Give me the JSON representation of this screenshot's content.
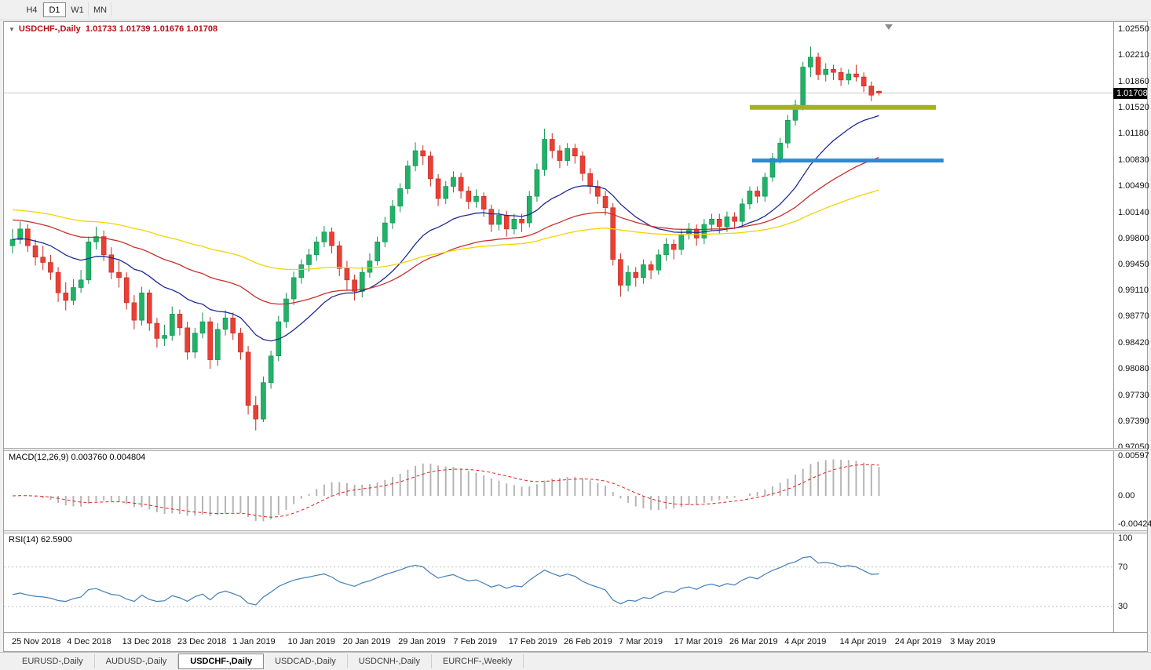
{
  "toolbar": {
    "timeframes": [
      {
        "label": "H4",
        "active": false
      },
      {
        "label": "D1",
        "active": true
      },
      {
        "label": "W1",
        "active": false
      },
      {
        "label": "MN",
        "active": false
      }
    ]
  },
  "icons": {
    "chart_menu_icon": "▼",
    "shift_marker_icon": "triangle-down"
  },
  "main_chart": {
    "symbol_title": "USDCHF-,Daily",
    "ohlc_text": "1.01733 1.01739 1.01676 1.01708",
    "price_box": "1.01708",
    "price_axis_ticks": [
      "1.02550",
      "1.02210",
      "1.01860",
      "1.01520",
      "1.01180",
      "1.00830",
      "1.00490",
      "1.00140",
      "0.99800",
      "0.99450",
      "0.99110",
      "0.98770",
      "0.98420",
      "0.98080",
      "0.97730",
      "0.97390",
      "0.97050"
    ]
  },
  "macd": {
    "label": "MACD(12,26,9)",
    "values": "0.003760 0.004804",
    "axis_ticks": [
      "0.00597",
      "0.00",
      "-0.00424"
    ]
  },
  "rsi": {
    "label": "RSI(14)",
    "value": "62.5900",
    "axis_ticks": [
      "100",
      "70",
      "30"
    ]
  },
  "time_axis": {
    "labels": [
      "25 Nov 2018",
      "4 Dec 2018",
      "13 Dec 2018",
      "23 Dec 2018",
      "1 Jan 2019",
      "10 Jan 2019",
      "20 Jan 2019",
      "29 Jan 2019",
      "7 Feb 2019",
      "17 Feb 2019",
      "26 Feb 2019",
      "7 Mar 2019",
      "17 Mar 2019",
      "26 Mar 2019",
      "4 Apr 2019",
      "14 Apr 2019",
      "24 Apr 2019",
      "3 May 2019"
    ]
  },
  "tabs": [
    {
      "label": "EURUSD-,Daily",
      "active": false
    },
    {
      "label": "AUDUSD-,Daily",
      "active": false
    },
    {
      "label": "USDCHF-,Daily",
      "active": true
    },
    {
      "label": "USDCAD-,Daily",
      "active": false
    },
    {
      "label": "USDCNH-,Daily",
      "active": false
    },
    {
      "label": "EURCHF-,Weekly",
      "active": false
    }
  ],
  "chart_data": {
    "type": "candlestick",
    "symbol_title": "USDCHF-,Daily",
    "ohlc_header": {
      "open": "1.01733",
      "high": "1.01739",
      "low": "1.01676",
      "close": "1.01708"
    },
    "price_axis_range": {
      "top": 1.0255,
      "bottom": 0.9705
    },
    "colors": {
      "up": "#21b268",
      "up_stroke": "#0e8f4e",
      "down": "#ea3f34",
      "down_stroke": "#c42a20"
    },
    "bid_line": {
      "price": 1.01708,
      "color": "#c6c6c6"
    },
    "moving_averages": [
      {
        "period": 20,
        "color": "#1f2a93",
        "seed": null
      },
      {
        "period": 45,
        "color": "#c9302c",
        "seed": 1.0005
      },
      {
        "period": 90,
        "color": "#f2d400",
        "seed": 1.0018
      }
    ],
    "horizontal_segments": [
      {
        "price": 1.0152,
        "from_index": 97,
        "to_index": 121.5,
        "color": "#a4b220",
        "thickness": 6
      },
      {
        "price": 1.0082,
        "from_index": 97.3,
        "to_index": 122.5,
        "color": "#2a8bd4",
        "thickness": 5
      }
    ],
    "indicators": {
      "macd": {
        "label": "MACD(12,26,9)",
        "values_text": "0.003760 0.004804",
        "fast": 12,
        "slow": 26,
        "signal": 9,
        "axis_ticks": [
          "0.00597",
          "0.00",
          "-0.00424"
        ],
        "histogram_color": "#b5b5b5",
        "signal_color": "#e02020"
      },
      "rsi": {
        "label": "RSI(14)",
        "value_text": "62.5900",
        "period": 14,
        "levels": [
          70,
          30
        ],
        "axis_ticks": [
          "100",
          "70",
          "30"
        ],
        "line_color": "#417eb8"
      }
    },
    "candles": [
      [
        0.997,
        0.9992,
        0.996,
        0.9978
      ],
      [
        0.9978,
        1.0002,
        0.9972,
        0.9992
      ],
      [
        0.9992,
        0.9998,
        0.9962,
        0.997
      ],
      [
        0.997,
        0.9978,
        0.9944,
        0.9955
      ],
      [
        0.9955,
        0.997,
        0.9938,
        0.9948
      ],
      [
        0.9948,
        0.9958,
        0.9925,
        0.9935
      ],
      [
        0.9935,
        0.9942,
        0.9896,
        0.9908
      ],
      [
        0.9908,
        0.9922,
        0.9885,
        0.9898
      ],
      [
        0.9898,
        0.9926,
        0.9892,
        0.9915
      ],
      [
        0.9915,
        0.9938,
        0.9908,
        0.9925
      ],
      [
        0.9925,
        0.9982,
        0.992,
        0.9975
      ],
      [
        0.9975,
        0.9995,
        0.9965,
        0.9982
      ],
      [
        0.9982,
        0.999,
        0.995,
        0.9958
      ],
      [
        0.9958,
        0.9968,
        0.9926,
        0.9935
      ],
      [
        0.9935,
        0.995,
        0.9915,
        0.9928
      ],
      [
        0.9928,
        0.9935,
        0.9886,
        0.9895
      ],
      [
        0.9895,
        0.9905,
        0.986,
        0.9872
      ],
      [
        0.9872,
        0.9916,
        0.9865,
        0.9908
      ],
      [
        0.9908,
        0.9912,
        0.9858,
        0.9868
      ],
      [
        0.9868,
        0.9875,
        0.9836,
        0.9848
      ],
      [
        0.9848,
        0.9866,
        0.9838,
        0.9852
      ],
      [
        0.9852,
        0.989,
        0.9845,
        0.988
      ],
      [
        0.988,
        0.9886,
        0.9852,
        0.9862
      ],
      [
        0.9862,
        0.987,
        0.982,
        0.983
      ],
      [
        0.983,
        0.9862,
        0.9822,
        0.9855
      ],
      [
        0.9855,
        0.9882,
        0.9848,
        0.987
      ],
      [
        0.987,
        0.9876,
        0.9808,
        0.982
      ],
      [
        0.982,
        0.9868,
        0.9812,
        0.986
      ],
      [
        0.986,
        0.9885,
        0.9852,
        0.9875
      ],
      [
        0.9875,
        0.9882,
        0.9846,
        0.9855
      ],
      [
        0.9855,
        0.9862,
        0.982,
        0.983
      ],
      [
        0.983,
        0.9838,
        0.9748,
        0.976
      ],
      [
        0.976,
        0.9772,
        0.9727,
        0.9742
      ],
      [
        0.9742,
        0.9798,
        0.9738,
        0.979
      ],
      [
        0.979,
        0.9832,
        0.9782,
        0.9825
      ],
      [
        0.9825,
        0.9878,
        0.9818,
        0.987
      ],
      [
        0.987,
        0.9908,
        0.9862,
        0.99
      ],
      [
        0.99,
        0.9936,
        0.9892,
        0.9928
      ],
      [
        0.9928,
        0.9952,
        0.992,
        0.9945
      ],
      [
        0.9945,
        0.9966,
        0.9936,
        0.9958
      ],
      [
        0.9958,
        0.9982,
        0.995,
        0.9975
      ],
      [
        0.9975,
        0.9996,
        0.9968,
        0.9988
      ],
      [
        0.9988,
        0.9994,
        0.996,
        0.997
      ],
      [
        0.997,
        0.9976,
        0.993,
        0.994
      ],
      [
        0.994,
        0.995,
        0.9912,
        0.9925
      ],
      [
        0.9925,
        0.9932,
        0.9898,
        0.991
      ],
      [
        0.991,
        0.9942,
        0.9902,
        0.9935
      ],
      [
        0.9935,
        0.996,
        0.9928,
        0.995
      ],
      [
        0.995,
        0.9982,
        0.9944,
        0.9975
      ],
      [
        0.9975,
        1.0008,
        0.9968,
        1.0
      ],
      [
        1.0,
        1.003,
        0.9992,
        1.0022
      ],
      [
        1.0022,
        1.0052,
        1.0014,
        1.0045
      ],
      [
        1.0045,
        1.0082,
        1.0038,
        1.0075
      ],
      [
        1.0075,
        1.0106,
        1.0068,
        1.0095
      ],
      [
        1.0095,
        1.0102,
        1.0076,
        1.0088
      ],
      [
        1.0088,
        1.0094,
        1.0048,
        1.0058
      ],
      [
        1.0058,
        1.0064,
        1.0022,
        1.0032
      ],
      [
        1.0032,
        1.0055,
        1.0025,
        1.0048
      ],
      [
        1.0048,
        1.0068,
        1.004,
        1.006
      ],
      [
        1.006,
        1.0066,
        1.0032,
        1.0042
      ],
      [
        1.0042,
        1.0048,
        1.0018,
        1.0028
      ],
      [
        1.0028,
        1.0044,
        1.002,
        1.0035
      ],
      [
        1.0035,
        1.004,
        1.0008,
        1.0018
      ],
      [
        1.0018,
        1.0024,
        0.9988,
        0.9998
      ],
      [
        0.9998,
        1.0018,
        0.999,
        1.001
      ],
      [
        1.001,
        1.0016,
        0.9982,
        0.9992
      ],
      [
        0.9992,
        1.0012,
        0.9985,
        1.0005
      ],
      [
        1.0005,
        1.0012,
        0.9988,
        1.0
      ],
      [
        1.0,
        1.0042,
        0.9994,
        1.0035
      ],
      [
        1.0035,
        1.0078,
        1.0028,
        1.007
      ],
      [
        1.007,
        1.0124,
        1.0062,
        1.011
      ],
      [
        1.011,
        1.0118,
        1.0085,
        1.0095
      ],
      [
        1.0095,
        1.0102,
        1.0072,
        1.0082
      ],
      [
        1.0082,
        1.0105,
        1.0075,
        1.0098
      ],
      [
        1.0098,
        1.0104,
        1.0078,
        1.0088
      ],
      [
        1.0088,
        1.0094,
        1.0055,
        1.0065
      ],
      [
        1.0065,
        1.0072,
        1.0038,
        1.0048
      ],
      [
        1.0048,
        1.0056,
        1.0025,
        1.0035
      ],
      [
        1.0035,
        1.0042,
        1.001,
        1.002
      ],
      [
        1.002,
        1.0026,
        0.9944,
        0.9952
      ],
      [
        0.9952,
        0.996,
        0.9903,
        0.9918
      ],
      [
        0.9918,
        0.9944,
        0.991,
        0.9935
      ],
      [
        0.9935,
        0.9942,
        0.9916,
        0.9928
      ],
      [
        0.9928,
        0.9952,
        0.992,
        0.9945
      ],
      [
        0.9945,
        0.995,
        0.9926,
        0.9938
      ],
      [
        0.9938,
        0.9965,
        0.9932,
        0.9958
      ],
      [
        0.9958,
        0.998,
        0.995,
        0.9972
      ],
      [
        0.9972,
        0.9978,
        0.9952,
        0.9965
      ],
      [
        0.9965,
        0.9992,
        0.9958,
        0.9985
      ],
      [
        0.9985,
        1.0,
        0.9978,
        0.9992
      ],
      [
        0.9992,
        0.9998,
        0.997,
        0.998
      ],
      [
        0.998,
        1.0005,
        0.9972,
        0.9998
      ],
      [
        0.9998,
        1.0012,
        0.999,
        1.0005
      ],
      [
        1.0005,
        1.0012,
        0.9986,
        0.9995
      ],
      [
        0.9995,
        1.0015,
        0.9988,
        1.0008
      ],
      [
        1.0008,
        1.0014,
        0.9992,
        1.0002
      ],
      [
        1.0002,
        1.0032,
        0.9996,
        1.0025
      ],
      [
        1.0025,
        1.0048,
        1.0018,
        1.0042
      ],
      [
        1.0042,
        1.0048,
        1.0026,
        1.0035
      ],
      [
        1.0035,
        1.0066,
        1.0028,
        1.006
      ],
      [
        1.006,
        1.0092,
        1.0054,
        1.0085
      ],
      [
        1.0085,
        1.0112,
        1.0078,
        1.0105
      ],
      [
        1.0105,
        1.0142,
        1.0098,
        1.0135
      ],
      [
        1.0135,
        1.0162,
        1.0128,
        1.0155
      ],
      [
        1.0155,
        1.0212,
        1.0148,
        1.0205
      ],
      [
        1.0205,
        1.0232,
        1.0192,
        1.0218
      ],
      [
        1.0218,
        1.0224,
        1.0188,
        1.0195
      ],
      [
        1.0195,
        1.021,
        1.0186,
        1.0202
      ],
      [
        1.0202,
        1.0208,
        1.0188,
        1.0198
      ],
      [
        1.0198,
        1.0204,
        1.018,
        1.0188
      ],
      [
        1.0188,
        1.0202,
        1.0182,
        1.0196
      ],
      [
        1.0196,
        1.0208,
        1.0186,
        1.0192
      ],
      [
        1.0192,
        1.0198,
        1.0172,
        1.018
      ],
      [
        1.018,
        1.0186,
        1.016,
        1.0168
      ],
      [
        1.01733,
        1.01739,
        1.01676,
        1.01708
      ]
    ]
  }
}
